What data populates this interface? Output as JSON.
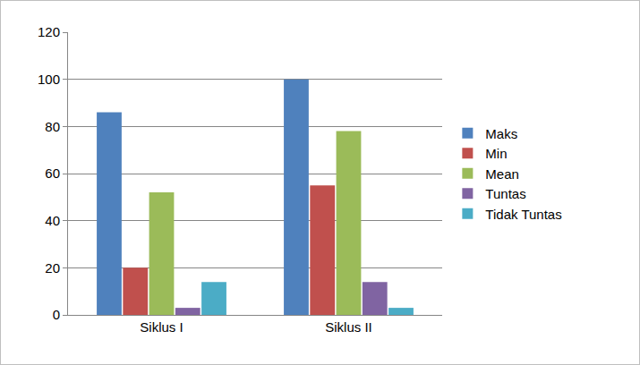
{
  "chart_data": {
    "type": "bar",
    "categories": [
      "Siklus I",
      "Siklus II"
    ],
    "series": [
      {
        "name": "Maks",
        "color": "#4f81bd",
        "values": [
          86,
          100
        ]
      },
      {
        "name": "Min",
        "color": "#c0504d",
        "values": [
          20,
          55
        ]
      },
      {
        "name": "Mean",
        "color": "#9bbb59",
        "values": [
          52,
          78
        ]
      },
      {
        "name": "Tuntas",
        "color": "#8064a2",
        "values": [
          3,
          14
        ]
      },
      {
        "name": "Tidak Tuntas",
        "color": "#4bacc6",
        "values": [
          14,
          3
        ]
      }
    ],
    "ylim": [
      0,
      120
    ],
    "yticks": [
      0,
      20,
      40,
      60,
      80,
      100,
      120
    ],
    "grid": true,
    "legend": "right"
  }
}
